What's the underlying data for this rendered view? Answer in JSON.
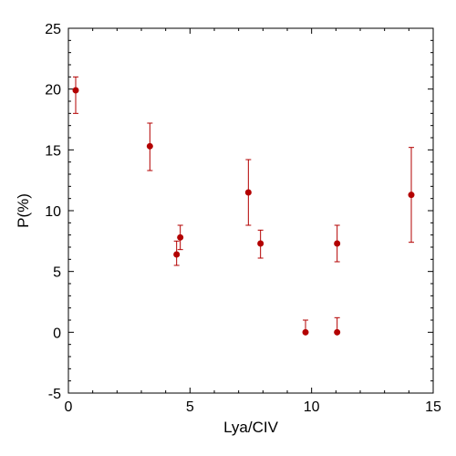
{
  "chart_data": {
    "type": "scatter",
    "xlabel": "Lya/CIV",
    "ylabel": "P(%)",
    "xlim": [
      0,
      15
    ],
    "ylim": [
      -5,
      25
    ],
    "x_ticks": [
      0,
      5,
      10,
      15
    ],
    "y_ticks": [
      -5,
      0,
      5,
      10,
      15,
      20,
      25
    ],
    "x_tick_labels": [
      "0",
      "5",
      "10",
      "15"
    ],
    "y_tick_labels": [
      "-5",
      "0",
      "5",
      "10",
      "15",
      "20",
      "25"
    ],
    "grid": false,
    "color": "#b30000",
    "points": [
      {
        "x": 0.3,
        "y": 19.9,
        "err_low": 1.9,
        "err_high": 1.1
      },
      {
        "x": 3.35,
        "y": 15.3,
        "err_low": 2.0,
        "err_high": 1.9
      },
      {
        "x": 4.45,
        "y": 6.4,
        "err_low": 0.9,
        "err_high": 1.1
      },
      {
        "x": 4.6,
        "y": 7.8,
        "err_low": 1.0,
        "err_high": 1.0
      },
      {
        "x": 7.4,
        "y": 11.5,
        "err_low": 2.7,
        "err_high": 2.7
      },
      {
        "x": 7.9,
        "y": 7.3,
        "err_low": 1.2,
        "err_high": 1.1
      },
      {
        "x": 9.75,
        "y": 0.0,
        "err_low": 0.0,
        "err_high": 1.0
      },
      {
        "x": 11.05,
        "y": 0.0,
        "err_low": 0.0,
        "err_high": 1.2
      },
      {
        "x": 11.05,
        "y": 7.3,
        "err_low": 1.5,
        "err_high": 1.5
      },
      {
        "x": 14.1,
        "y": 11.3,
        "err_low": 3.9,
        "err_high": 3.9
      }
    ]
  }
}
